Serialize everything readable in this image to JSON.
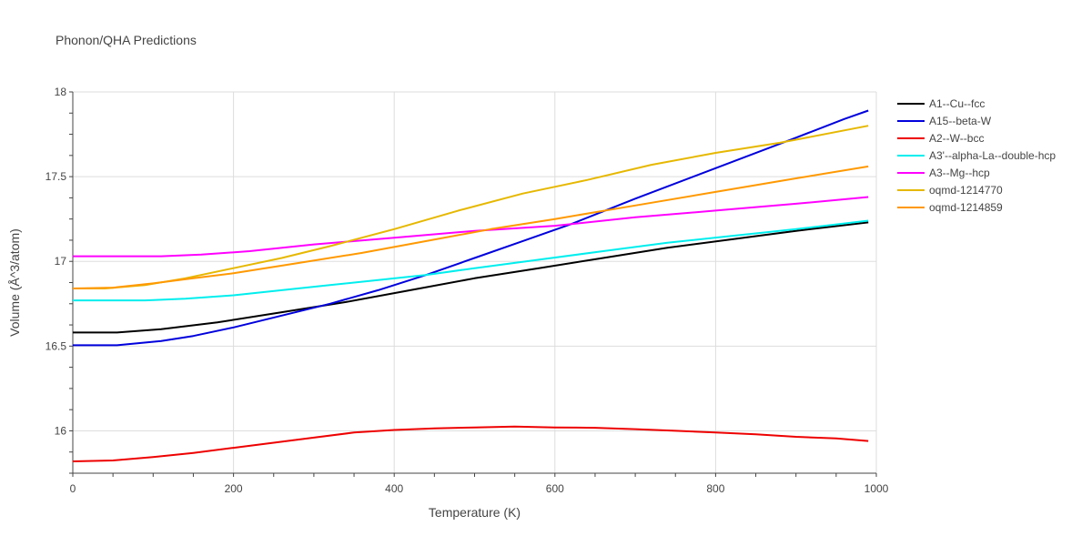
{
  "chart_data": {
    "type": "line",
    "title": "Phonon/QHA Predictions",
    "xlabel": "Temperature (K)",
    "ylabel": "Volume (Å^3/atom)",
    "xlim": [
      0,
      1000
    ],
    "ylim": [
      15.75,
      18
    ],
    "xticks": [
      0,
      200,
      400,
      600,
      800,
      1000
    ],
    "yticks": [
      16,
      16.5,
      17,
      17.5,
      18
    ],
    "grid": true,
    "legend_position": "right",
    "series": [
      {
        "name": "A1--Cu--fcc",
        "color": "#000000",
        "x": [
          0,
          55,
          110,
          180,
          260,
          340,
          420,
          500,
          580,
          660,
          740,
          820,
          900,
          990
        ],
        "y": [
          16.58,
          16.58,
          16.6,
          16.64,
          16.7,
          16.76,
          16.83,
          16.9,
          16.96,
          17.02,
          17.08,
          17.13,
          17.18,
          17.23
        ]
      },
      {
        "name": "A15--beta-W",
        "color": "#0000dd",
        "x": [
          0,
          55,
          110,
          150,
          200,
          260,
          320,
          380,
          440,
          500,
          560,
          620,
          700,
          800,
          900,
          960,
          990
        ],
        "y": [
          16.505,
          16.505,
          16.53,
          16.56,
          16.61,
          16.68,
          16.75,
          16.83,
          16.92,
          17.02,
          17.12,
          17.22,
          17.37,
          17.55,
          17.73,
          17.84,
          17.89
        ]
      },
      {
        "name": "A2--W--bcc",
        "color": "#ee0000",
        "x": [
          0,
          50,
          100,
          150,
          200,
          250,
          300,
          350,
          400,
          450,
          500,
          550,
          600,
          650,
          700,
          750,
          800,
          850,
          900,
          950,
          990
        ],
        "y": [
          15.82,
          15.825,
          15.845,
          15.87,
          15.9,
          15.93,
          15.96,
          15.99,
          16.005,
          16.015,
          16.02,
          16.025,
          16.02,
          16.018,
          16.01,
          16.0,
          15.99,
          15.98,
          15.965,
          15.955,
          15.94
        ]
      },
      {
        "name": "A3'--alpha-La--double-hcp",
        "color": "#00eeee",
        "x": [
          0,
          40,
          90,
          140,
          200,
          260,
          320,
          380,
          440,
          500,
          580,
          660,
          740,
          820,
          900,
          990
        ],
        "y": [
          16.77,
          16.77,
          16.77,
          16.78,
          16.8,
          16.83,
          16.86,
          16.89,
          16.92,
          16.96,
          17.01,
          17.06,
          17.11,
          17.15,
          17.19,
          17.24
        ]
      },
      {
        "name": "A3--Mg--hcp",
        "color": "#ff00ff",
        "x": [
          0,
          50,
          110,
          160,
          220,
          300,
          400,
          500,
          600,
          700,
          800,
          900,
          990
        ],
        "y": [
          17.03,
          17.03,
          17.03,
          17.04,
          17.06,
          17.1,
          17.14,
          17.18,
          17.21,
          17.26,
          17.3,
          17.34,
          17.38
        ]
      },
      {
        "name": "oqmd-1214770",
        "color": "#e6b800",
        "x": [
          0,
          40,
          90,
          140,
          200,
          260,
          320,
          400,
          480,
          560,
          640,
          720,
          800,
          880,
          990
        ],
        "y": [
          16.84,
          16.84,
          16.86,
          16.9,
          16.96,
          17.02,
          17.09,
          17.19,
          17.3,
          17.4,
          17.48,
          17.57,
          17.64,
          17.7,
          17.8
        ]
      },
      {
        "name": "oqmd-1214859",
        "color": "#ff9900",
        "x": [
          0,
          50,
          100,
          150,
          200,
          280,
          360,
          440,
          520,
          600,
          700,
          800,
          900,
          990
        ],
        "y": [
          16.84,
          16.845,
          16.87,
          16.9,
          16.93,
          16.99,
          17.05,
          17.12,
          17.19,
          17.25,
          17.33,
          17.41,
          17.49,
          17.56
        ]
      }
    ]
  }
}
